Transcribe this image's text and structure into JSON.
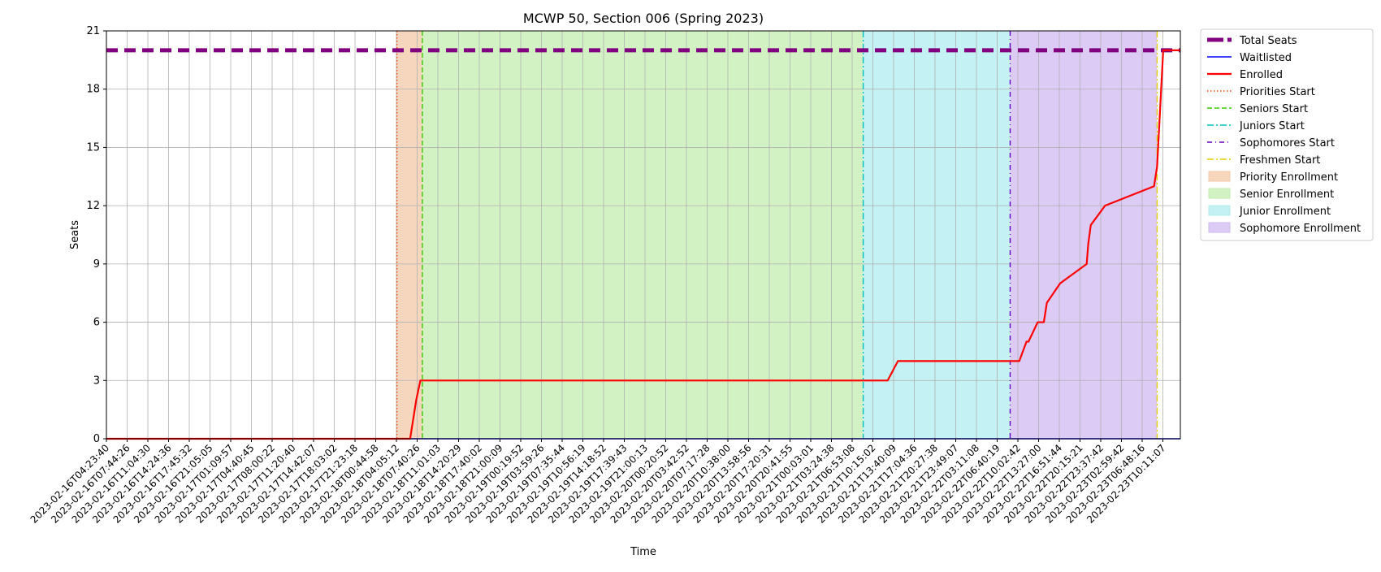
{
  "chart_data": {
    "type": "line",
    "title": "MCWP 50, Section 006 (Spring 2023)",
    "xlabel": "Time",
    "ylabel": "Seats",
    "ylim": [
      0,
      21
    ],
    "yticks": [
      0,
      3,
      6,
      9,
      12,
      15,
      18,
      21
    ],
    "xlim": [
      "2023-02-16T04:23:40",
      "2023-02-23T11:48:00"
    ],
    "grid": true,
    "legend_position": "outside-right",
    "xtick_labels": [
      "2023-02-16T04:23:40",
      "2023-02-16T07:44:26",
      "2023-02-16T11:04:30",
      "2023-02-16T14:24:36",
      "2023-02-16T17:45:32",
      "2023-02-16T21:05:05",
      "2023-02-17T01:09:57",
      "2023-02-17T04:40:45",
      "2023-02-17T08:00:22",
      "2023-02-17T11:20:40",
      "2023-02-17T14:42:07",
      "2023-02-17T18:03:02",
      "2023-02-17T21:23:18",
      "2023-02-18T00:44:58",
      "2023-02-18T04:05:12",
      "2023-02-18T07:40:26",
      "2023-02-18T11:01:03",
      "2023-02-18T14:20:29",
      "2023-02-18T17:40:02",
      "2023-02-18T21:00:09",
      "2023-02-19T00:19:52",
      "2023-02-19T03:59:26",
      "2023-02-19T07:35:44",
      "2023-02-19T10:56:19",
      "2023-02-19T14:18:52",
      "2023-02-19T17:39:43",
      "2023-02-19T21:00:13",
      "2023-02-20T00:20:52",
      "2023-02-20T03:42:52",
      "2023-02-20T07:17:28",
      "2023-02-20T10:38:00",
      "2023-02-20T13:58:56",
      "2023-02-20T17:20:31",
      "2023-02-20T20:41:55",
      "2023-02-21T00:03:01",
      "2023-02-21T03:24:38",
      "2023-02-21T06:53:08",
      "2023-02-21T10:15:02",
      "2023-02-21T13:40:09",
      "2023-02-21T17:04:36",
      "2023-02-21T20:27:38",
      "2023-02-21T23:49:07",
      "2023-02-22T03:11:08",
      "2023-02-22T06:40:19",
      "2023-02-22T10:02:42",
      "2023-02-22T13:27:00",
      "2023-02-22T16:51:44",
      "2023-02-22T20:15:21",
      "2023-02-22T23:37:42",
      "2023-02-23T02:59:42",
      "2023-02-23T06:48:16",
      "2023-02-23T10:11:07"
    ],
    "series": [
      {
        "name": "Total Seats",
        "color": "#800080",
        "style": "dashed-thick",
        "x": [
          "2023-02-16T04:23:40",
          "2023-02-23T11:48:00"
        ],
        "y": [
          20,
          20
        ]
      },
      {
        "name": "Waitlisted",
        "color": "#0000ff",
        "style": "solid-thin",
        "x": [
          "2023-02-16T04:23:40",
          "2023-02-23T11:48:00"
        ],
        "y": [
          0,
          0
        ]
      },
      {
        "name": "Enrolled",
        "color": "#ff0000",
        "style": "solid-thick",
        "x": [
          "2023-02-16T04:23:40",
          "2023-02-18T06:00:00",
          "2023-02-18T06:30:00",
          "2023-02-18T07:00:00",
          "2023-02-18T07:40:26",
          "2023-02-19T00:00:00",
          "2023-02-21T07:00:00",
          "2023-02-21T12:00:00",
          "2023-02-21T13:40:09",
          "2023-02-22T09:30:00",
          "2023-02-22T10:40:00",
          "2023-02-22T11:00:00",
          "2023-02-22T12:30:00",
          "2023-02-22T13:30:00",
          "2023-02-22T14:00:00",
          "2023-02-22T16:10:00",
          "2023-02-22T20:30:00",
          "2023-02-22T20:45:00",
          "2023-02-22T21:10:00",
          "2023-02-22T23:30:00",
          "2023-02-23T07:30:00",
          "2023-02-23T08:00:00",
          "2023-02-23T08:30:00",
          "2023-02-23T09:00:00",
          "2023-02-23T11:48:00"
        ],
        "y": [
          0,
          0,
          1,
          2,
          3,
          3,
          3,
          3,
          4,
          4,
          5,
          5,
          6,
          6,
          7,
          8,
          9,
          10,
          11,
          12,
          13,
          14,
          17,
          20,
          20
        ]
      }
    ],
    "vlines": [
      {
        "name": "Priorities Start",
        "x": "2023-02-18T03:50:00",
        "color": "#ff4500",
        "style": "dotted"
      },
      {
        "name": "Seniors Start",
        "x": "2023-02-18T08:00:00",
        "color": "#33cc00",
        "style": "dashed"
      },
      {
        "name": "Juniors Start",
        "x": "2023-02-21T08:00:00",
        "color": "#00bfbf",
        "style": "dashdot"
      },
      {
        "name": "Sophomores Start",
        "x": "2023-02-22T08:00:00",
        "color": "#6600cc",
        "style": "dashdot-dense"
      },
      {
        "name": "Freshmen Start",
        "x": "2023-02-23T08:00:00",
        "color": "#e6cc00",
        "style": "dashdot"
      }
    ],
    "spans": [
      {
        "name": "Priority Enrollment",
        "start": "2023-02-18T03:50:00",
        "end": "2023-02-18T08:00:00",
        "color": "#f4c8a8"
      },
      {
        "name": "Senior Enrollment",
        "start": "2023-02-18T08:00:00",
        "end": "2023-02-21T08:00:00",
        "color": "#c3eeb0"
      },
      {
        "name": "Junior Enrollment",
        "start": "2023-02-21T08:00:00",
        "end": "2023-02-22T08:00:00",
        "color": "#b0ecef"
      },
      {
        "name": "Sophomore Enrollment",
        "start": "2023-02-22T08:00:00",
        "end": "2023-02-23T08:00:00",
        "color": "#cfbaf1"
      }
    ],
    "legend": [
      {
        "label": "Total Seats",
        "kind": "line",
        "color": "#800080",
        "style": "dashed-thick"
      },
      {
        "label": "Waitlisted",
        "kind": "line",
        "color": "#0000ff",
        "style": "solid-thin"
      },
      {
        "label": "Enrolled",
        "kind": "line",
        "color": "#ff0000",
        "style": "solid-thick"
      },
      {
        "label": "Priorities Start",
        "kind": "line",
        "color": "#ff4500",
        "style": "dotted"
      },
      {
        "label": "Seniors Start",
        "kind": "line",
        "color": "#33cc00",
        "style": "dashed"
      },
      {
        "label": "Juniors Start",
        "kind": "line",
        "color": "#00bfbf",
        "style": "dashdot"
      },
      {
        "label": "Sophomores Start",
        "kind": "line",
        "color": "#6600cc",
        "style": "dashdot-dense"
      },
      {
        "label": "Freshmen Start",
        "kind": "line",
        "color": "#e6cc00",
        "style": "dashdot"
      },
      {
        "label": "Priority Enrollment",
        "kind": "patch",
        "color": "#f4c8a8"
      },
      {
        "label": "Senior Enrollment",
        "kind": "patch",
        "color": "#c3eeb0"
      },
      {
        "label": "Junior Enrollment",
        "kind": "patch",
        "color": "#b0ecef"
      },
      {
        "label": "Sophomore Enrollment",
        "kind": "patch",
        "color": "#cfbaf1"
      }
    ]
  }
}
